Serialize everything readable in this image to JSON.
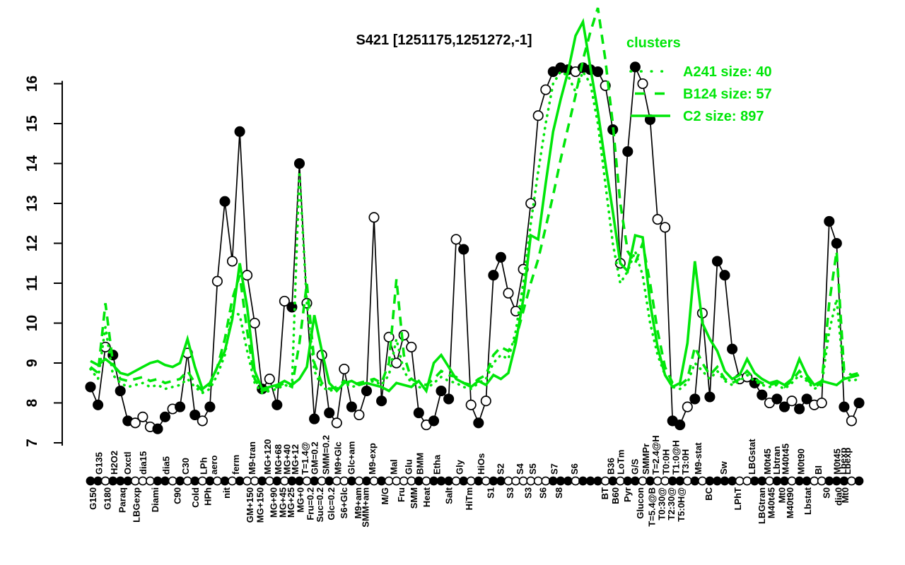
{
  "title": "S421 [1251175,1251272,-1]",
  "legend": {
    "title": "clusters",
    "items": [
      {
        "label": "A241 size: 40",
        "style": "dotted"
      },
      {
        "label": "B124 size: 57",
        "style": "dashed"
      },
      {
        "label": "C2 size: 897",
        "style": "solid"
      }
    ]
  },
  "colors": {
    "cluster": "#00e609",
    "profile": "#000000",
    "background": "#ffffff"
  },
  "chart_data": {
    "type": "line",
    "title": "S421 [1251175,1251272,-1]",
    "ylabel": "",
    "xlabel": "",
    "ylim": [
      7,
      16
    ],
    "yticks": [
      7,
      8,
      9,
      10,
      11,
      12,
      13,
      14,
      15,
      16
    ],
    "grid": false,
    "legend_position": "top-right",
    "x_count": 104,
    "conditions": [
      {
        "l": "G150",
        "r": "b",
        "p": 0.4
      },
      {
        "l": "G135",
        "r": "t",
        "p": 1.2
      },
      {
        "l": "G180",
        "r": "b",
        "p": 2.3
      },
      {
        "l": "H2O2",
        "r": "t",
        "p": 3.2
      },
      {
        "l": "Paraq",
        "r": "b",
        "p": 4.3
      },
      {
        "l": "Oxctl",
        "r": "t",
        "p": 5.0
      },
      {
        "l": "LBGexp",
        "r": "b",
        "p": 6.2
      },
      {
        "l": "dia15",
        "r": "t",
        "p": 7.1
      },
      {
        "l": "Diami",
        "r": "b",
        "p": 8.7
      },
      {
        "l": "dia5",
        "r": "t",
        "p": 10.2
      },
      {
        "l": "C90",
        "r": "b",
        "p": 11.7
      },
      {
        "l": "C30",
        "r": "t",
        "p": 12.8
      },
      {
        "l": "Cold",
        "r": "b",
        "p": 14.1
      },
      {
        "l": "LPh",
        "r": "t",
        "p": 15.2
      },
      {
        "l": "HPh",
        "r": "b",
        "p": 15.8
      },
      {
        "l": "aero",
        "r": "t",
        "p": 16.6
      },
      {
        "l": "nit",
        "r": "b",
        "p": 18.3
      },
      {
        "l": "ferm",
        "r": "t",
        "p": 19.5
      },
      {
        "l": "GM+150",
        "r": "b",
        "p": 21.4
      },
      {
        "l": "M9-tran",
        "r": "t",
        "p": 21.7
      },
      {
        "l": "MG+150",
        "r": "b",
        "p": 22.8
      },
      {
        "l": "MG+120",
        "r": "t",
        "p": 23.8
      },
      {
        "l": "MG+90",
        "r": "b",
        "p": 24.6
      },
      {
        "l": "MG+68",
        "r": "t",
        "p": 25.2
      },
      {
        "l": "MG+45",
        "r": "b",
        "p": 25.8
      },
      {
        "l": "MG+40",
        "r": "t",
        "p": 26.4
      },
      {
        "l": "MG+25",
        "r": "b",
        "p": 26.9
      },
      {
        "l": "MG+12",
        "r": "t",
        "p": 27.5
      },
      {
        "l": "MG+0",
        "r": "b",
        "p": 28.2
      },
      {
        "l": "T=1.4@",
        "r": "t",
        "p": 28.8
      },
      {
        "l": "Fru=0.2",
        "r": "b",
        "p": 29.5
      },
      {
        "l": "GM=0.2",
        "r": "t",
        "p": 30.1
      },
      {
        "l": "Suc=0.2",
        "r": "b",
        "p": 30.8
      },
      {
        "l": "SMM=0.2",
        "r": "t",
        "p": 31.6
      },
      {
        "l": "Glc=0.2",
        "r": "b",
        "p": 32.3
      },
      {
        "l": "M9+Glc",
        "r": "t",
        "p": 33.2
      },
      {
        "l": "S6+Glc",
        "r": "b",
        "p": 34.0
      },
      {
        "l": "Glc+am",
        "r": "t",
        "p": 35.0
      },
      {
        "l": "M9+am",
        "r": "b",
        "p": 35.9
      },
      {
        "l": "SMM+am",
        "r": "b",
        "p": 36.9
      },
      {
        "l": "M9-exp",
        "r": "t",
        "p": 37.8
      },
      {
        "l": "M/G",
        "r": "b",
        "p": 39.5
      },
      {
        "l": "Mal",
        "r": "t",
        "p": 40.7
      },
      {
        "l": "Fru",
        "r": "b",
        "p": 41.7
      },
      {
        "l": "Glu",
        "r": "t",
        "p": 42.7
      },
      {
        "l": "SMM",
        "r": "b",
        "p": 43.4
      },
      {
        "l": "BMM",
        "r": "t",
        "p": 44.2
      },
      {
        "l": "Heat",
        "r": "b",
        "p": 45.1
      },
      {
        "l": "Etha",
        "r": "t",
        "p": 46.5
      },
      {
        "l": "Salt",
        "r": "b",
        "p": 48.1
      },
      {
        "l": "Gly",
        "r": "t",
        "p": 49.5
      },
      {
        "l": "HiTm",
        "r": "b",
        "p": 50.8
      },
      {
        "l": "HiOs",
        "r": "t",
        "p": 52.4
      },
      {
        "l": "S1",
        "r": "b",
        "p": 53.7
      },
      {
        "l": "S2",
        "r": "t",
        "p": 55.0
      },
      {
        "l": "S3",
        "r": "b",
        "p": 56.3
      },
      {
        "l": "S4",
        "r": "t",
        "p": 57.6
      },
      {
        "l": "S3",
        "r": "b",
        "p": 58.7
      },
      {
        "l": "S5",
        "r": "t",
        "p": 59.3
      },
      {
        "l": "S6",
        "r": "b",
        "p": 60.7
      },
      {
        "l": "S7",
        "r": "t",
        "p": 62.2
      },
      {
        "l": "S8",
        "r": "b",
        "p": 62.8
      },
      {
        "l": "S6",
        "r": "t",
        "p": 64.9
      },
      {
        "l": "BT",
        "r": "b",
        "p": 69.0
      },
      {
        "l": "B36",
        "r": "t",
        "p": 69.8
      },
      {
        "l": "B60",
        "r": "b",
        "p": 70.4
      },
      {
        "l": "LoTm",
        "r": "t",
        "p": 71.1
      },
      {
        "l": "Pyr",
        "r": "b",
        "p": 72.0
      },
      {
        "l": "G/S",
        "r": "t",
        "p": 73.0
      },
      {
        "l": "Glucon",
        "r": "b",
        "p": 73.7
      },
      {
        "l": "SMMPr",
        "r": "t",
        "p": 74.5
      },
      {
        "l": "T=5.4@B",
        "r": "b",
        "p": 75.3
      },
      {
        "l": "T=2.4@H",
        "r": "t",
        "p": 75.8
      },
      {
        "l": "T0:30@",
        "r": "b",
        "p": 76.6
      },
      {
        "l": "T0:0H",
        "r": "t",
        "p": 77.2
      },
      {
        "l": "T2:30@",
        "r": "b",
        "p": 77.9
      },
      {
        "l": "T1:0@H",
        "r": "t",
        "p": 78.5
      },
      {
        "l": "T5:0H@",
        "r": "b",
        "p": 79.2
      },
      {
        "l": "T3:0H",
        "r": "t",
        "p": 79.8
      },
      {
        "l": "M9-stat",
        "r": "t",
        "p": 81.5
      },
      {
        "l": "BC",
        "r": "b",
        "p": 82.9
      },
      {
        "l": "Sw",
        "r": "t",
        "p": 84.9
      },
      {
        "l": "LPhT",
        "r": "b",
        "p": 86.8
      },
      {
        "l": "LBGstat",
        "r": "t",
        "p": 88.7
      },
      {
        "l": "LBGtran",
        "r": "b",
        "p": 90.0
      },
      {
        "l": "M0t45",
        "r": "t",
        "p": 90.8
      },
      {
        "l": "M40t45",
        "r": "b",
        "p": 91.3
      },
      {
        "l": "Lbtran",
        "r": "t",
        "p": 92.0
      },
      {
        "l": "Mt0",
        "r": "b",
        "p": 92.7
      },
      {
        "l": "M40t45",
        "r": "t",
        "p": 93.2
      },
      {
        "l": "M40t90",
        "r": "b",
        "p": 93.8
      },
      {
        "l": "M0t90",
        "r": "t",
        "p": 95.3
      },
      {
        "l": "Lbstat",
        "r": "b",
        "p": 96.2
      },
      {
        "l": "BI",
        "r": "t",
        "p": 97.6
      },
      {
        "l": "S0",
        "r": "b",
        "p": 98.7
      },
      {
        "l": "M0t45",
        "r": "t",
        "p": 100.1
      },
      {
        "l": "dia0",
        "r": "b",
        "p": 100.3
      },
      {
        "l": "Lbexp",
        "r": "t",
        "p": 100.9
      },
      {
        "l": "Mt0",
        "r": "b",
        "p": 101.2
      },
      {
        "l": "Lbexp",
        "r": "t",
        "p": 101.5
      }
    ],
    "series": [
      {
        "name": "profile",
        "color": "black",
        "style": "solid-with-points",
        "values": [
          8.4,
          7.95,
          9.4,
          9.2,
          8.3,
          7.55,
          7.5,
          7.65,
          7.4,
          7.35,
          7.65,
          7.85,
          7.9,
          9.25,
          7.7,
          7.55,
          7.9,
          11.05,
          13.05,
          11.55,
          14.8,
          11.2,
          10.0,
          8.35,
          8.6,
          7.95,
          10.55,
          10.4,
          14.0,
          10.5,
          7.6,
          9.2,
          7.75,
          7.5,
          8.85,
          7.9,
          7.7,
          8.3,
          12.65,
          8.05,
          9.65,
          9.0,
          9.7,
          9.4,
          7.75,
          7.45,
          7.55,
          8.3,
          8.1,
          12.1,
          11.85,
          7.95,
          7.5,
          8.05,
          11.2,
          11.65,
          10.75,
          10.3,
          11.35,
          13.0,
          15.2,
          15.85,
          16.3,
          16.4,
          16.35,
          16.3,
          16.4,
          16.35,
          16.3,
          15.95,
          14.85,
          11.5,
          14.3,
          16.42,
          16.0,
          15.1,
          12.6,
          12.4,
          7.55,
          7.45,
          7.9,
          8.1,
          10.25,
          8.15,
          11.55,
          11.2,
          9.35,
          8.6,
          8.65,
          8.5,
          8.2,
          8.0,
          8.1,
          7.9,
          8.05,
          7.85,
          8.1,
          7.95,
          8.0,
          12.55,
          12.0,
          7.9,
          7.55,
          8.0
        ],
        "markers": [
          "f",
          "f",
          "o",
          "f",
          "f",
          "f",
          "o",
          "o",
          "o",
          "f",
          "f",
          "o",
          "f",
          "o",
          "f",
          "o",
          "f",
          "o",
          "f",
          "o",
          "f",
          "o",
          "o",
          "f",
          "o",
          "f",
          "o",
          "f",
          "f",
          "o",
          "f",
          "o",
          "f",
          "o",
          "o",
          "f",
          "o",
          "f",
          "o",
          "f",
          "o",
          "o",
          "o",
          "o",
          "f",
          "o",
          "f",
          "f",
          "f",
          "o",
          "f",
          "o",
          "f",
          "o",
          "f",
          "f",
          "o",
          "o",
          "o",
          "o",
          "o",
          "o",
          "f",
          "f",
          "f",
          "o",
          "f",
          "f",
          "f",
          "o",
          "f",
          "o",
          "f",
          "f",
          "o",
          "f",
          "o",
          "o",
          "f",
          "f",
          "o",
          "f",
          "o",
          "f",
          "f",
          "f",
          "f",
          "o",
          "o",
          "f",
          "f",
          "o",
          "f",
          "f",
          "o",
          "f",
          "f",
          "o",
          "o",
          "f",
          "f",
          "f",
          "o",
          "f"
        ]
      },
      {
        "name": "A241",
        "size": 40,
        "style": "dotted",
        "color": "green",
        "values": [
          8.85,
          8.6,
          9.9,
          8.7,
          8.5,
          8.4,
          8.45,
          8.5,
          8.4,
          8.45,
          8.35,
          8.4,
          8.45,
          8.6,
          8.4,
          8.25,
          8.35,
          8.7,
          9.2,
          10.3,
          10.2,
          9.3,
          8.5,
          8.25,
          8.3,
          8.35,
          8.45,
          8.4,
          13.8,
          10.5,
          8.8,
          8.4,
          8.3,
          8.35,
          8.5,
          8.4,
          8.45,
          8.5,
          8.55,
          8.45,
          8.7,
          9.6,
          8.8,
          8.5,
          8.4,
          8.35,
          8.5,
          8.65,
          8.55,
          8.5,
          8.4,
          8.35,
          8.5,
          8.6,
          9.0,
          9.2,
          9.1,
          9.8,
          11.0,
          12.5,
          13.8,
          15.0,
          16.0,
          16.3,
          16.2,
          15.8,
          16.3,
          16.0,
          15.0,
          13.5,
          12.0,
          11.0,
          11.3,
          11.8,
          11.2,
          10.0,
          9.2,
          8.7,
          8.4,
          8.35,
          8.5,
          9.0,
          8.8,
          8.6,
          8.8,
          8.55,
          8.45,
          8.55,
          8.7,
          8.55,
          8.45,
          8.4,
          8.45,
          8.35,
          8.5,
          8.7,
          8.55,
          8.35,
          8.45,
          9.8,
          10.6,
          8.6,
          8.55,
          8.6
        ]
      },
      {
        "name": "B124",
        "size": 57,
        "style": "dashed",
        "color": "green",
        "values": [
          8.9,
          8.75,
          10.5,
          9.0,
          8.6,
          8.55,
          8.6,
          8.65,
          8.55,
          8.6,
          8.5,
          8.55,
          8.6,
          8.8,
          8.5,
          8.3,
          8.45,
          8.9,
          9.6,
          10.6,
          11.2,
          9.8,
          8.6,
          8.3,
          8.35,
          8.4,
          8.5,
          8.4,
          9.5,
          11.0,
          9.0,
          8.5,
          8.35,
          8.4,
          8.55,
          8.45,
          8.5,
          8.55,
          8.6,
          8.5,
          9.0,
          11.1,
          9.2,
          8.6,
          8.5,
          8.45,
          8.6,
          8.8,
          8.7,
          8.65,
          8.5,
          8.45,
          8.6,
          8.7,
          9.2,
          9.4,
          9.3,
          9.6,
          10.3,
          11.0,
          11.6,
          12.4,
          13.2,
          14.1,
          14.9,
          15.7,
          16.6,
          17.3,
          17.9,
          16.6,
          15.0,
          13.0,
          11.8,
          11.5,
          12.0,
          11.0,
          9.8,
          8.9,
          8.5,
          8.45,
          8.6,
          9.4,
          9.0,
          8.7,
          8.9,
          8.6,
          8.5,
          8.6,
          8.8,
          8.6,
          8.5,
          8.45,
          8.5,
          8.4,
          8.55,
          8.8,
          8.6,
          8.4,
          8.5,
          10.5,
          11.8,
          8.8,
          8.7,
          8.75
        ]
      },
      {
        "name": "C2",
        "size": 897,
        "style": "solid",
        "color": "green",
        "values": [
          9.05,
          8.95,
          9.1,
          8.95,
          8.75,
          8.7,
          8.8,
          8.9,
          9.0,
          9.05,
          8.95,
          8.9,
          9.0,
          9.6,
          8.9,
          8.35,
          8.5,
          8.9,
          9.3,
          10.1,
          11.5,
          10.4,
          8.8,
          8.35,
          8.4,
          8.45,
          8.55,
          8.45,
          8.6,
          8.9,
          10.2,
          9.3,
          8.5,
          8.3,
          8.5,
          8.55,
          8.45,
          8.5,
          8.45,
          8.4,
          8.3,
          8.5,
          8.45,
          8.4,
          8.55,
          8.3,
          9.0,
          9.2,
          8.9,
          8.6,
          8.5,
          8.4,
          8.55,
          8.45,
          8.7,
          8.6,
          8.75,
          9.5,
          10.6,
          12.2,
          12.1,
          13.5,
          14.8,
          15.6,
          16.3,
          17.2,
          17.55,
          16.4,
          15.3,
          14.0,
          12.8,
          11.5,
          11.3,
          12.2,
          12.15,
          10.5,
          9.4,
          8.7,
          8.4,
          8.5,
          9.5,
          11.55,
          10.0,
          9.6,
          9.3,
          8.8,
          8.6,
          8.7,
          9.1,
          8.75,
          8.6,
          8.5,
          8.55,
          8.45,
          8.6,
          9.1,
          8.7,
          8.45,
          8.55,
          8.5,
          8.45,
          8.6,
          8.65,
          8.7
        ]
      }
    ]
  }
}
